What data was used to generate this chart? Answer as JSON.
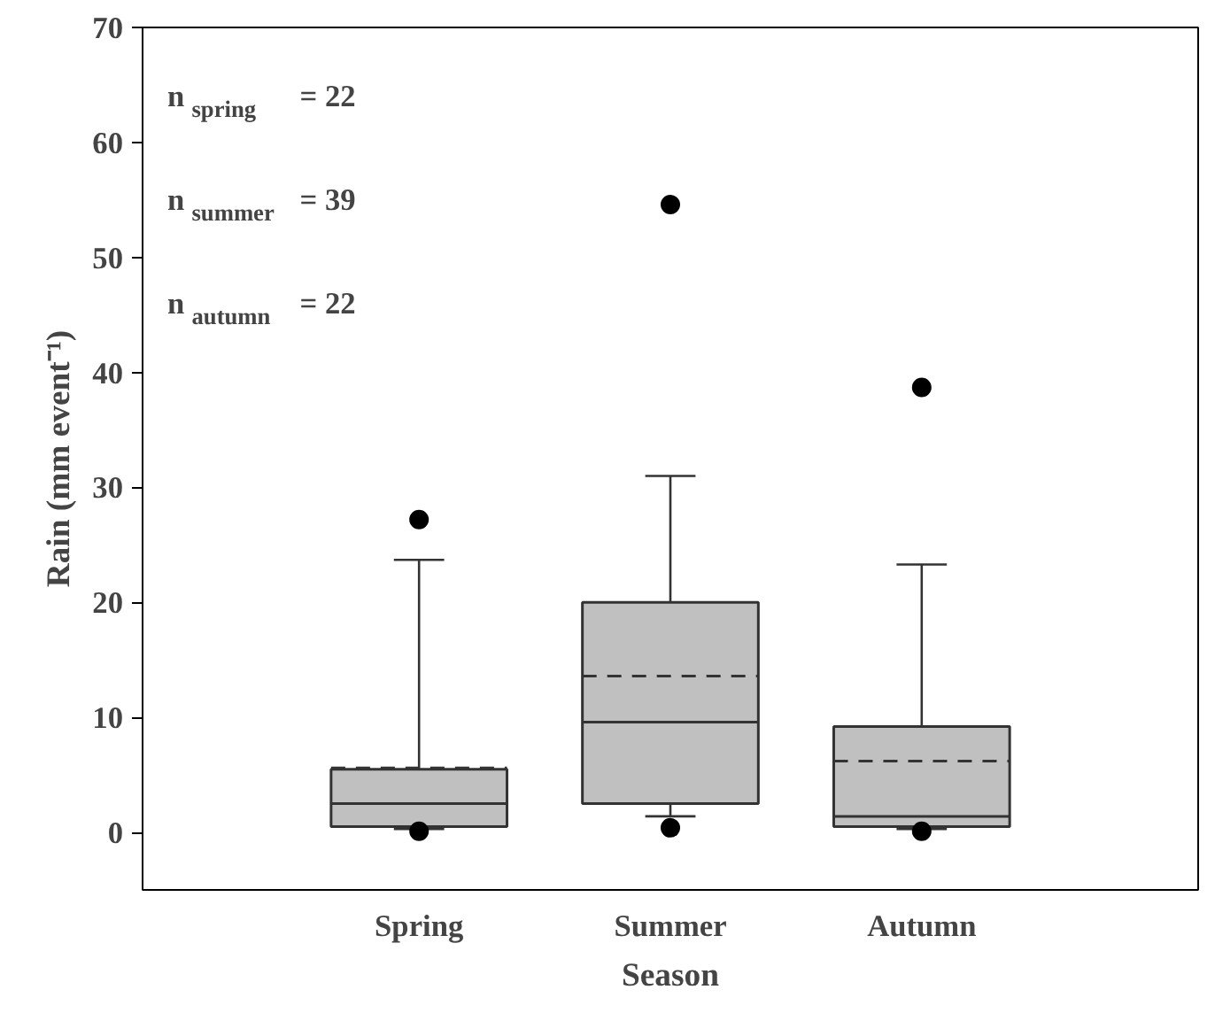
{
  "chart_data": {
    "type": "box",
    "xlabel": "Season",
    "ylabel": "Rain (mm event⁻¹)",
    "categories": [
      "Spring",
      "Summer",
      "Autumn"
    ],
    "boxes": [
      {
        "low": 0.3,
        "q1": 0.5,
        "median": 2.5,
        "q3": 5.5,
        "high": 23.7,
        "mean": 5.6,
        "outliers": [
          27.2,
          0.1
        ]
      },
      {
        "low": 1.4,
        "q1": 2.5,
        "median": 9.6,
        "q3": 20.0,
        "high": 31.0,
        "mean": 13.6,
        "outliers": [
          54.6,
          0.4
        ]
      },
      {
        "low": 0.3,
        "q1": 0.5,
        "median": 1.4,
        "q3": 9.2,
        "high": 23.3,
        "mean": 6.2,
        "outliers": [
          38.7,
          0.1
        ]
      }
    ],
    "color": "#c0c0c0",
    "ylim": [
      -5,
      70
    ],
    "yticks": [
      0,
      10,
      20,
      30,
      40,
      50,
      60,
      70
    ],
    "annotations": [
      "n$_{spring}$ = 22",
      "n$_{summer}$ = 39",
      "n$_{autumn}$ = 22"
    ]
  }
}
